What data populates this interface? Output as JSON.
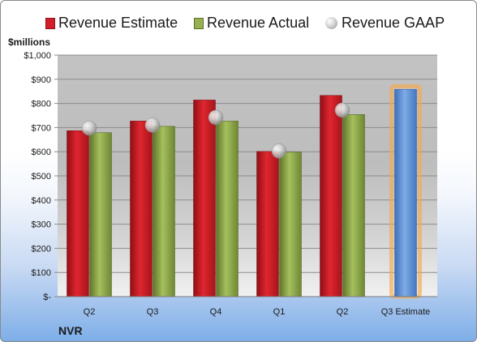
{
  "legend": {
    "estimate": "Revenue Estimate",
    "actual": "Revenue Actual",
    "gaap": "Revenue GAAP"
  },
  "unit_label": "$millions",
  "company": "NVR",
  "colors": {
    "estimate": "#d01f2a",
    "actual": "#97b150",
    "gaap": "#c0c0c0",
    "forecast": "#5b8fd6",
    "forecast_glow": "#f6a94c"
  },
  "chart_data": {
    "type": "bar",
    "categories": [
      "Q2",
      "Q3",
      "Q4",
      "Q1",
      "Q2",
      "Q3 Estimate"
    ],
    "series": [
      {
        "name": "Revenue Estimate",
        "values": [
          687,
          727,
          814,
          601,
          833,
          null
        ]
      },
      {
        "name": "Revenue Actual",
        "values": [
          679,
          705,
          727,
          598,
          754,
          null
        ]
      },
      {
        "name": "Revenue GAAP",
        "type": "scatter",
        "values": [
          698,
          710,
          742,
          603,
          772,
          null
        ]
      },
      {
        "name": "",
        "values": [
          null,
          null,
          null,
          null,
          null,
          858
        ]
      }
    ],
    "yticks": [
      "$-",
      "$100",
      "$200",
      "$300",
      "$400",
      "$500",
      "$600",
      "$700",
      "$800",
      "$900",
      "$1,000"
    ],
    "ylim": [
      0,
      1000
    ],
    "xlabel": "",
    "ylabel": "$millions",
    "title": "",
    "legend_position": "top",
    "grid": true
  }
}
